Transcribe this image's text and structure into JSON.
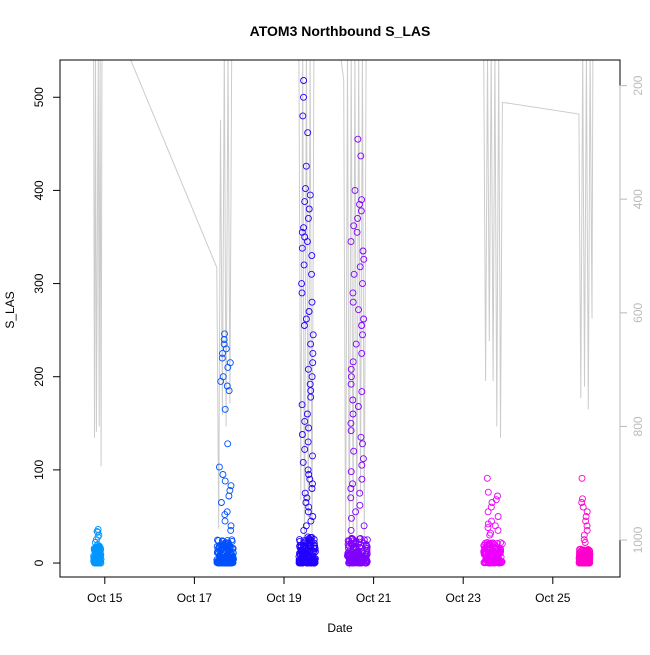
{
  "chart_data": {
    "type": "scatter",
    "title": "ATOM3 Northbound S_LAS",
    "xlabel": "Date",
    "ylabel": "S_LAS",
    "x_axis": {
      "type": "date",
      "range": [
        "2023-10-14T00:00",
        "2023-10-26T12:00"
      ],
      "ticks": [
        {
          "value": "2023-10-15",
          "label": "Oct 15"
        },
        {
          "value": "2023-10-17",
          "label": "Oct 17"
        },
        {
          "value": "2023-10-19",
          "label": "Oct 19"
        },
        {
          "value": "2023-10-21",
          "label": "Oct 21"
        },
        {
          "value": "2023-10-23",
          "label": "Oct 23"
        },
        {
          "value": "2023-10-25",
          "label": "Oct 25"
        }
      ]
    },
    "y_axis": {
      "range": [
        -15,
        540
      ],
      "ticks": [
        0,
        100,
        200,
        300,
        400,
        500
      ]
    },
    "y2_axis": {
      "range": [
        1065,
        155
      ],
      "reversed": true,
      "ticks": [
        200,
        400,
        600,
        800,
        1000
      ],
      "color": "#bbbbbb"
    },
    "grid": false,
    "legend": "none",
    "colors": {
      "marker_scale": [
        "#00a2ff",
        "#0058ff",
        "#1e00ff",
        "#8000ff",
        "#ee00ff",
        "#ff00cc"
      ],
      "depth_line": "#cccccc",
      "axis": "#000000"
    },
    "clusters": [
      {
        "start": "2023-10-14T18:00",
        "end": "2023-10-14T22:00",
        "color": "#0096ff",
        "baseline_max": 18,
        "tall": [
          30,
          34,
          36,
          28,
          25,
          22,
          33,
          20
        ]
      },
      {
        "start": "2023-10-17T12:00",
        "end": "2023-10-17T21:00",
        "color": "#0050ff",
        "baseline_max": 25,
        "tall": [
          230,
          240,
          246,
          235,
          225,
          220,
          215,
          210,
          200,
          195,
          190,
          185,
          165,
          128,
          103,
          95,
          88,
          83,
          78,
          72,
          65,
          55,
          52,
          45,
          40,
          35
        ]
      },
      {
        "start": "2023-10-19T08:00",
        "end": "2023-10-19T17:00",
        "color": "#2200ff",
        "baseline_max": 30,
        "tall": [
          518,
          500,
          480,
          462,
          426,
          402,
          395,
          388,
          380,
          370,
          360,
          355,
          350,
          345,
          338,
          330,
          320,
          310,
          300,
          290,
          280,
          270,
          262,
          255,
          245,
          235,
          225,
          215,
          208,
          200,
          192,
          185,
          178,
          170,
          160,
          152,
          145,
          138,
          130,
          122,
          115,
          108,
          100,
          95,
          90,
          85,
          80,
          75,
          70,
          65,
          60,
          55,
          50,
          45,
          40,
          35
        ]
      },
      {
        "start": "2023-10-20T10:00",
        "end": "2023-10-20T21:00",
        "color": "#8000ff",
        "baseline_max": 28,
        "tall": [
          455,
          437,
          400,
          390,
          385,
          378,
          370,
          362,
          355,
          345,
          335,
          326,
          318,
          310,
          300,
          290,
          280,
          272,
          262,
          255,
          245,
          235,
          225,
          216,
          208,
          200,
          192,
          184,
          175,
          168,
          160,
          150,
          142,
          135,
          128,
          120,
          112,
          105,
          98,
          90,
          85,
          80,
          75,
          70,
          62,
          55,
          48,
          40,
          35
        ]
      },
      {
        "start": "2023-10-23T11:00",
        "end": "2023-10-23T21:00",
        "color": "#ee00ff",
        "baseline_max": 22,
        "tall": [
          91,
          76,
          72,
          68,
          65,
          60,
          55,
          50,
          45,
          42,
          40,
          38,
          35,
          32,
          30
        ]
      },
      {
        "start": "2023-10-25T14:00",
        "end": "2023-10-25T20:00",
        "color": "#ff00cc",
        "baseline_max": 15,
        "tall": [
          91,
          69,
          65,
          60,
          55,
          50,
          45,
          40,
          35,
          30,
          25,
          22
        ]
      }
    ],
    "depth_series": {
      "axis": "y2",
      "breakpoints": [
        [
          "2023-10-14T18:00",
          140
        ],
        [
          "2023-10-14T18:30",
          820
        ],
        [
          "2023-10-14T19:00",
          140
        ],
        [
          "2023-10-14T19:30",
          810
        ],
        [
          "2023-10-14T20:30",
          140
        ],
        [
          "2023-10-14T21:00",
          800
        ],
        [
          "2023-10-14T21:30",
          140
        ],
        [
          "2023-10-14T22:00",
          870
        ],
        [
          "2023-10-14T22:30",
          140
        ],
        [
          "2023-10-15T12:00",
          140
        ],
        [
          "2023-10-17T12:00",
          520
        ],
        [
          "2023-10-17T13:00",
          980
        ],
        [
          "2023-10-17T14:00",
          260
        ],
        [
          "2023-10-17T15:00",
          780
        ],
        [
          "2023-10-17T16:00",
          140
        ],
        [
          "2023-10-17T17:00",
          800
        ],
        [
          "2023-10-17T18:00",
          140
        ],
        [
          "2023-10-17T19:00",
          760
        ],
        [
          "2023-10-17T20:00",
          140
        ],
        [
          "2023-10-17T21:00",
          140
        ],
        [
          "2023-10-19T08:00",
          140
        ],
        [
          "2023-10-19T09:00",
          930
        ],
        [
          "2023-10-19T10:00",
          140
        ],
        [
          "2023-10-19T11:00",
          1040
        ],
        [
          "2023-10-19T12:00",
          140
        ],
        [
          "2023-10-19T13:00",
          960
        ],
        [
          "2023-10-19T14:00",
          140
        ],
        [
          "2023-10-19T15:00",
          1020
        ],
        [
          "2023-10-19T16:00",
          140
        ],
        [
          "2023-10-19T17:00",
          140
        ],
        [
          "2023-10-20T06:00",
          140
        ],
        [
          "2023-10-20T08:00",
          190
        ],
        [
          "2023-10-20T09:00",
          1030
        ],
        [
          "2023-10-20T10:00",
          140
        ],
        [
          "2023-10-20T11:00",
          1050
        ],
        [
          "2023-10-20T12:00",
          140
        ],
        [
          "2023-10-20T13:00",
          980
        ],
        [
          "2023-10-20T14:00",
          140
        ],
        [
          "2023-10-20T15:00",
          1040
        ],
        [
          "2023-10-20T16:00",
          140
        ],
        [
          "2023-10-20T17:00",
          920
        ],
        [
          "2023-10-20T18:00",
          140
        ],
        [
          "2023-10-20T19:00",
          1000
        ],
        [
          "2023-10-20T20:00",
          140
        ],
        [
          "2023-10-20T21:00",
          140
        ],
        [
          "2023-10-23T11:00",
          140
        ],
        [
          "2023-10-23T12:00",
          720
        ],
        [
          "2023-10-23T13:00",
          140
        ],
        [
          "2023-10-23T14:00",
          650
        ],
        [
          "2023-10-23T15:00",
          140
        ],
        [
          "2023-10-23T16:00",
          720
        ],
        [
          "2023-10-23T17:00",
          140
        ],
        [
          "2023-10-23T18:00",
          800
        ],
        [
          "2023-10-23T19:00",
          140
        ],
        [
          "2023-10-23T20:00",
          820
        ],
        [
          "2023-10-23T21:00",
          230
        ],
        [
          "2023-10-23T22:00",
          230
        ],
        [
          "2023-10-25T14:00",
          250
        ],
        [
          "2023-10-25T15:00",
          750
        ],
        [
          "2023-10-25T16:00",
          140
        ],
        [
          "2023-10-25T17:00",
          730
        ],
        [
          "2023-10-25T18:00",
          140
        ],
        [
          "2023-10-25T19:00",
          770
        ],
        [
          "2023-10-25T20:00",
          140
        ],
        [
          "2023-10-25T21:00",
          610
        ],
        [
          "2023-10-25T21:30",
          140
        ]
      ]
    }
  }
}
